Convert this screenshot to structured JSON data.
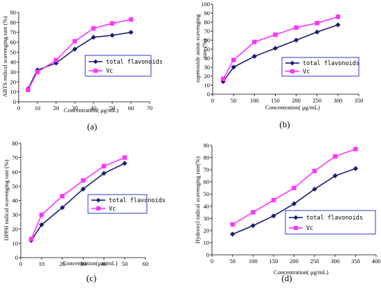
{
  "colors": {
    "series1": "#1a1a6e",
    "series2": "#ff33ff",
    "legend_border": "#0000cc"
  },
  "chart_data": [
    {
      "type": "line",
      "panel_label": "(a)",
      "xlabel": "Concentration( μg/mL)",
      "ylabel": "ABTS redical scavenging rate (%)",
      "xlim": [
        0,
        70
      ],
      "ylim": [
        0,
        90
      ],
      "xticks": [
        0,
        10,
        20,
        30,
        40,
        50,
        60,
        70
      ],
      "yticks": [
        0,
        10,
        20,
        30,
        40,
        50,
        60,
        70,
        80,
        90
      ],
      "series": [
        {
          "name": "total flavonoids",
          "x": [
            5,
            10,
            20,
            30,
            40,
            50,
            60
          ],
          "y": [
            13,
            32,
            39,
            53,
            65,
            67,
            70
          ]
        },
        {
          "name": "Vc",
          "x": [
            5,
            10,
            20,
            30,
            40,
            50,
            60
          ],
          "y": [
            12,
            30,
            42,
            61,
            74,
            79,
            83
          ]
        }
      ]
    },
    {
      "type": "line",
      "panel_label": "(b)",
      "xlabel": "Concentration( μg/mL)",
      "ylabel": "superoxide anion scavenging rate (%)",
      "xlim": [
        0,
        350
      ],
      "ylim": [
        0,
        100
      ],
      "xticks": [
        0,
        50,
        100,
        150,
        200,
        250,
        300,
        350
      ],
      "yticks": [
        0,
        10,
        20,
        30,
        40,
        50,
        60,
        70,
        80,
        90,
        100
      ],
      "series": [
        {
          "name": "total flavonoids",
          "x": [
            25,
            50,
            100,
            150,
            200,
            250,
            300
          ],
          "y": [
            14,
            30,
            42,
            51,
            60,
            69,
            77
          ]
        },
        {
          "name": "Vc",
          "x": [
            25,
            50,
            100,
            150,
            200,
            250,
            300
          ],
          "y": [
            17,
            38,
            58,
            66,
            74,
            79,
            86
          ]
        }
      ]
    },
    {
      "type": "line",
      "panel_label": "(c)",
      "xlabel": "Concentration(μm/mL)",
      "ylabel": "DPPH radical scavenging rate (%)",
      "xlim": [
        0,
        60
      ],
      "ylim": [
        0,
        80
      ],
      "xticks": [
        0,
        10,
        20,
        30,
        40,
        50,
        60
      ],
      "yticks": [
        0,
        10,
        20,
        30,
        40,
        50,
        60,
        70,
        80
      ],
      "series": [
        {
          "name": "total flavonoids",
          "x": [
            5,
            10,
            20,
            30,
            40,
            50
          ],
          "y": [
            12,
            23,
            35,
            48,
            59,
            66
          ]
        },
        {
          "name": "Vc",
          "x": [
            5,
            10,
            20,
            30,
            40,
            50
          ],
          "y": [
            13,
            30,
            43,
            54,
            64,
            70
          ]
        }
      ]
    },
    {
      "type": "line",
      "panel_label": "(d)",
      "xlabel": "Concentration( μg/mL)",
      "ylabel": "Hydroxyl radical scavenging rate(%)",
      "xlim": [
        0,
        400
      ],
      "ylim": [
        0,
        90
      ],
      "xticks": [
        0,
        50,
        100,
        150,
        200,
        250,
        300,
        350,
        400
      ],
      "yticks": [
        0,
        10,
        20,
        30,
        40,
        50,
        60,
        70,
        80,
        90
      ],
      "series": [
        {
          "name": "total flavonoids",
          "x": [
            50,
            100,
            150,
            200,
            250,
            300,
            350
          ],
          "y": [
            17,
            24,
            32,
            42,
            54,
            65,
            71
          ]
        },
        {
          "name": "Vc",
          "x": [
            50,
            100,
            150,
            200,
            250,
            300,
            350
          ],
          "y": [
            25,
            35,
            45,
            55,
            69,
            81,
            87
          ]
        }
      ]
    }
  ]
}
